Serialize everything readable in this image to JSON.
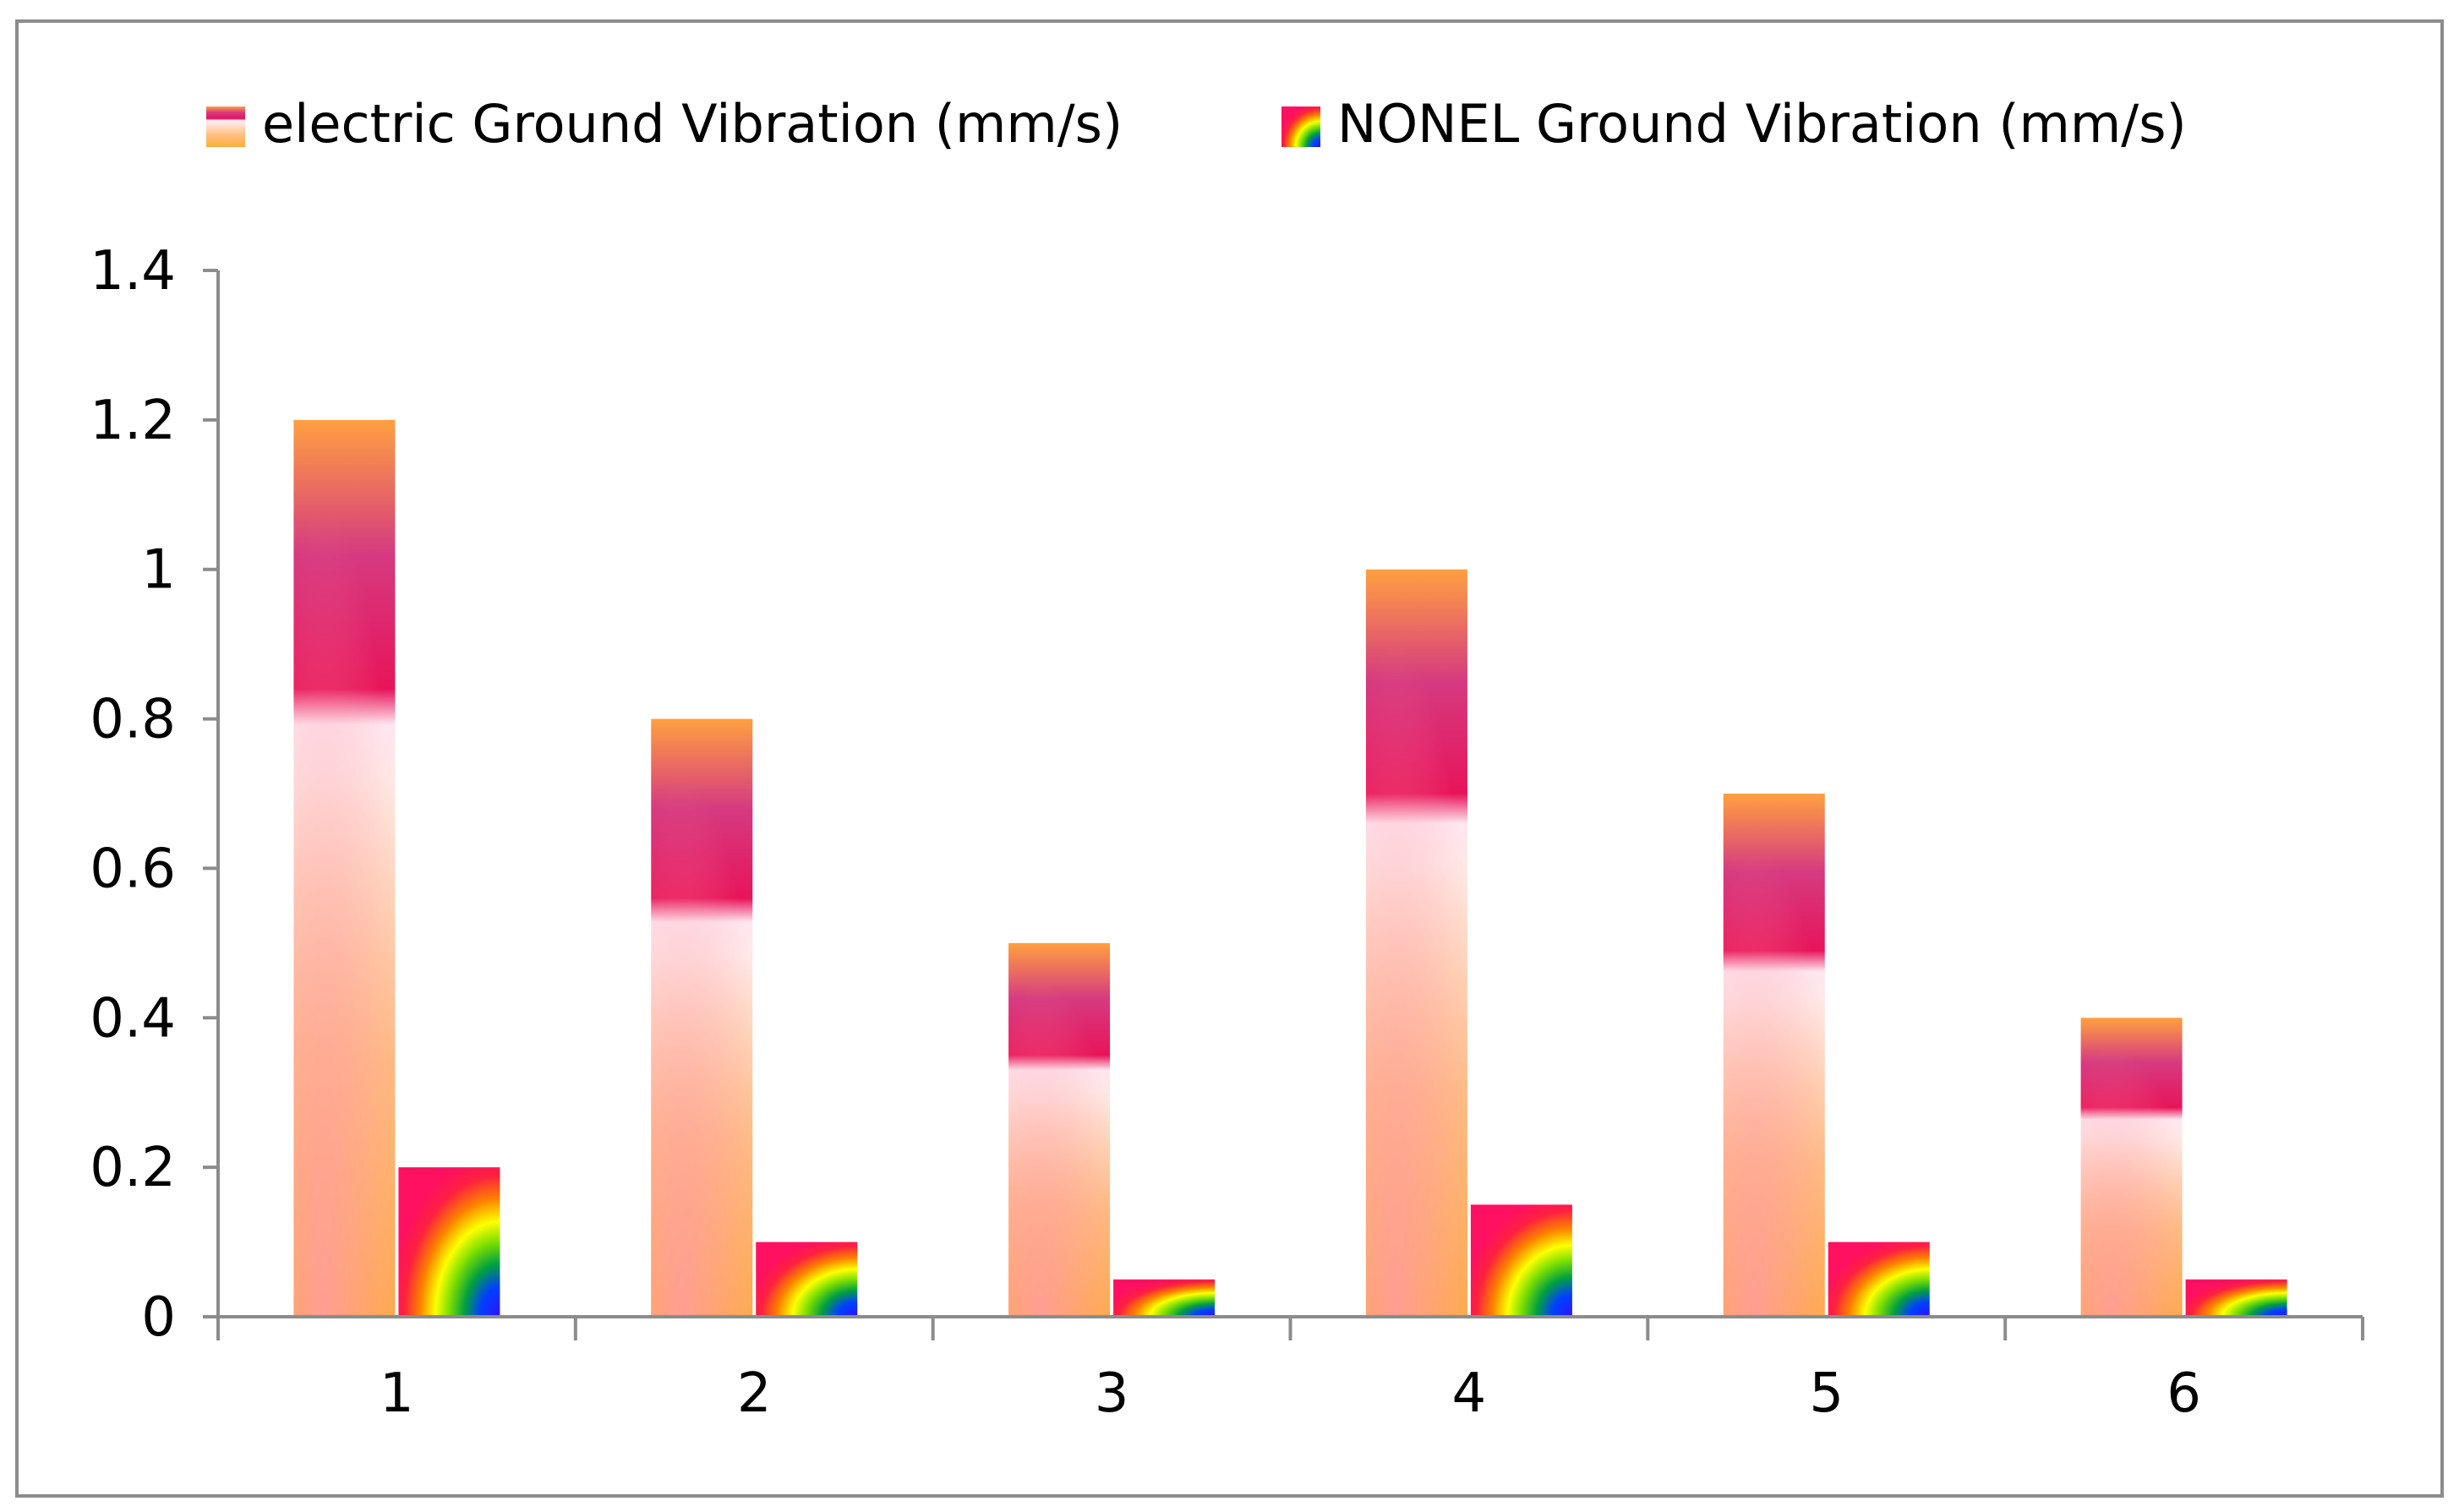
{
  "chart_data": {
    "type": "bar",
    "title": "",
    "xlabel": "",
    "ylabel": "",
    "categories": [
      "1",
      "2",
      "3",
      "4",
      "5",
      "6"
    ],
    "series": [
      {
        "name": "electric Ground Vibration (mm/s)",
        "values": [
          1.2,
          0.8,
          0.5,
          1.0,
          0.7,
          0.4
        ]
      },
      {
        "name": "NONEL Ground Vibration (mm/s)",
        "values": [
          0.2,
          0.1,
          0.05,
          0.15,
          0.1,
          0.05
        ]
      }
    ],
    "ylim": [
      0,
      1.4
    ],
    "yticks": [
      "0",
      "0.2",
      "0.4",
      "0.6",
      "0.8",
      "1",
      "1.2",
      "1.4"
    ],
    "grid": false,
    "legend_position": "top"
  }
}
